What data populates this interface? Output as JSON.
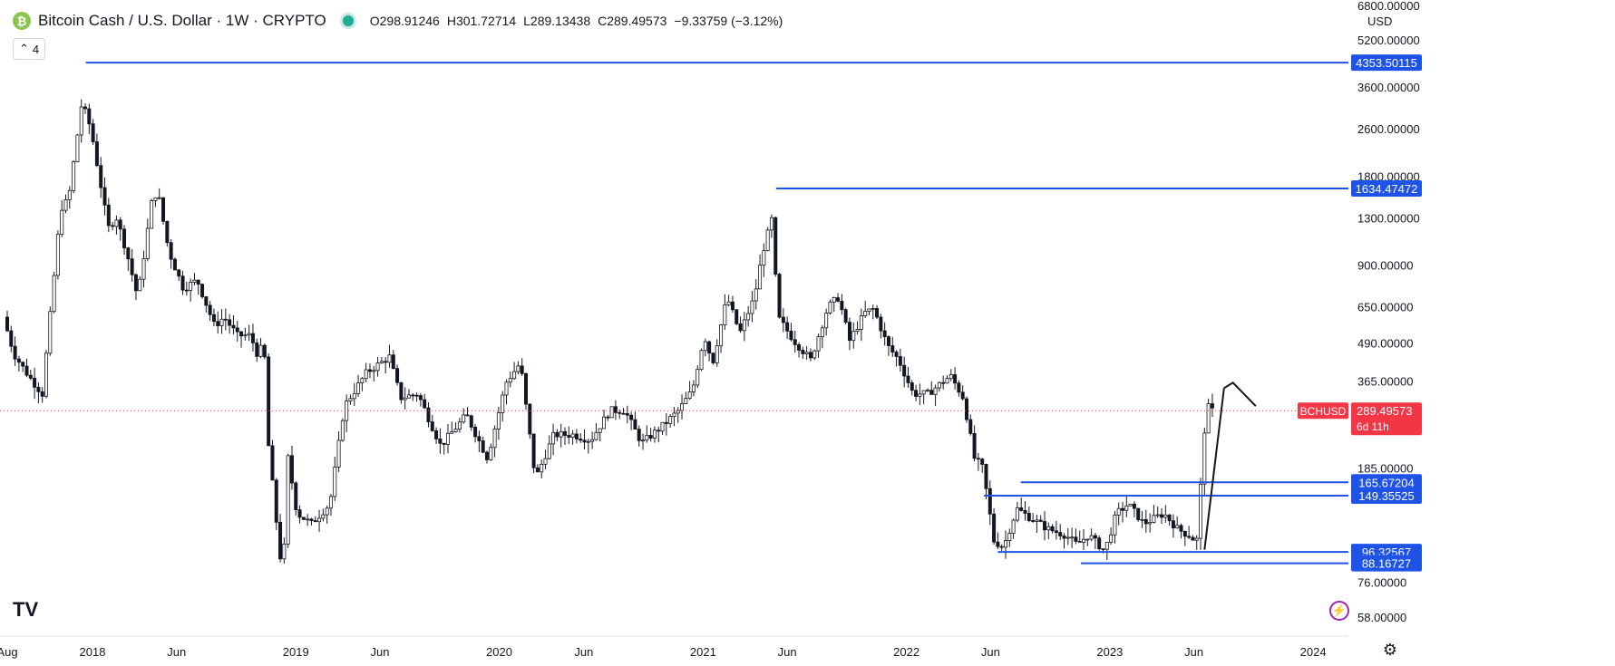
{
  "header": {
    "symbol_title": "Bitcoin Cash / U.S. Dollar · 1W · CRYPTO",
    "open_label": "O",
    "open": "298.91246",
    "high_label": "H",
    "high": "301.72714",
    "low_label": "L",
    "low": "289.13438",
    "close_label": "C",
    "close": "289.49573",
    "change": "−9.33759 (−3.12%)"
  },
  "indicator_count": "4",
  "currency": "USD",
  "logo_text": "TV",
  "colors": {
    "up": "#089981",
    "down": "#f23645",
    "candle": "#131722",
    "line": "#1e53e5",
    "price_tag": "#f23645",
    "axis_tag": "#1e53e5"
  },
  "chart_data": {
    "type": "candlestick",
    "y_scale": "log",
    "ylim": [
      50,
      6800
    ],
    "y_ticks": [
      58,
      76,
      96,
      185,
      365,
      490,
      650,
      900,
      1300,
      1800,
      2600,
      3600,
      5200,
      6800
    ],
    "y_tick_labels": [
      "58.00000",
      "76.00000",
      "96.00000",
      "185.00000",
      "365.00000",
      "490.00000",
      "650.00000",
      "900.00000",
      "1300.00000",
      "1800.00000",
      "2600.00000",
      "3600.00000",
      "5200.00000",
      "6800.00000"
    ],
    "x_range": [
      "2017-08-01",
      "2024-03-01"
    ],
    "x_ticks": [
      {
        "date": "2017-08-01",
        "label": "Aug"
      },
      {
        "date": "2018-01-01",
        "label": "2018"
      },
      {
        "date": "2018-06-01",
        "label": "Jun"
      },
      {
        "date": "2019-01-01",
        "label": "2019"
      },
      {
        "date": "2019-06-01",
        "label": "Jun"
      },
      {
        "date": "2020-01-01",
        "label": "2020"
      },
      {
        "date": "2020-06-01",
        "label": "Jun"
      },
      {
        "date": "2021-01-01",
        "label": "2021"
      },
      {
        "date": "2021-06-01",
        "label": "Jun"
      },
      {
        "date": "2022-01-01",
        "label": "2022"
      },
      {
        "date": "2022-06-01",
        "label": "Jun"
      },
      {
        "date": "2023-01-01",
        "label": "2023"
      },
      {
        "date": "2023-06-01",
        "label": "Jun"
      },
      {
        "date": "2024-01-01",
        "label": "2024"
      }
    ],
    "price_path": [
      [
        "2017-08-01",
        600
      ],
      [
        "2017-08-20",
        450
      ],
      [
        "2017-09-15",
        380
      ],
      [
        "2017-10-10",
        330
      ],
      [
        "2017-11-12",
        1400
      ],
      [
        "2017-11-26",
        1500
      ],
      [
        "2017-12-20",
        3200
      ],
      [
        "2018-01-05",
        2600
      ],
      [
        "2018-01-20",
        1800
      ],
      [
        "2018-02-05",
        1200
      ],
      [
        "2018-02-20",
        1300
      ],
      [
        "2018-03-10",
        1000
      ],
      [
        "2018-03-30",
        700
      ],
      [
        "2018-04-25",
        1500
      ],
      [
        "2018-05-05",
        1600
      ],
      [
        "2018-05-25",
        1000
      ],
      [
        "2018-06-20",
        750
      ],
      [
        "2018-07-15",
        800
      ],
      [
        "2018-08-15",
        560
      ],
      [
        "2018-09-01",
        600
      ],
      [
        "2018-09-25",
        520
      ],
      [
        "2018-10-20",
        520
      ],
      [
        "2018-10-28",
        450
      ],
      [
        "2018-11-12",
        480
      ],
      [
        "2018-11-20",
        220
      ],
      [
        "2018-12-10",
        95
      ],
      [
        "2018-12-16",
        82
      ],
      [
        "2018-12-25",
        200
      ],
      [
        "2019-01-10",
        130
      ],
      [
        "2019-02-05",
        120
      ],
      [
        "2019-03-10",
        140
      ],
      [
        "2019-04-05",
        300
      ],
      [
        "2019-05-15",
        390
      ],
      [
        "2019-06-25",
        440
      ],
      [
        "2019-07-15",
        320
      ],
      [
        "2019-08-15",
        330
      ],
      [
        "2019-09-25",
        220
      ],
      [
        "2019-11-10",
        280
      ],
      [
        "2019-12-18",
        200
      ],
      [
        "2020-01-20",
        360
      ],
      [
        "2020-02-15",
        420
      ],
      [
        "2020-03-13",
        170
      ],
      [
        "2020-04-15",
        240
      ],
      [
        "2020-05-20",
        240
      ],
      [
        "2020-06-20",
        230
      ],
      [
        "2020-07-25",
        290
      ],
      [
        "2020-08-20",
        290
      ],
      [
        "2020-09-20",
        225
      ],
      [
        "2020-10-25",
        255
      ],
      [
        "2020-11-25",
        290
      ],
      [
        "2020-12-20",
        340
      ],
      [
        "2021-01-10",
        520
      ],
      [
        "2021-01-25",
        420
      ],
      [
        "2021-02-20",
        700
      ],
      [
        "2021-03-15",
        530
      ],
      [
        "2021-04-10",
        700
      ],
      [
        "2021-04-25",
        1000
      ],
      [
        "2021-05-12",
        1300
      ],
      [
        "2021-05-22",
        600
      ],
      [
        "2021-06-20",
        500
      ],
      [
        "2021-07-20",
        430
      ],
      [
        "2021-08-20",
        650
      ],
      [
        "2021-09-08",
        700
      ],
      [
        "2021-09-28",
        500
      ],
      [
        "2021-10-25",
        620
      ],
      [
        "2021-11-10",
        640
      ],
      [
        "2021-12-05",
        480
      ],
      [
        "2021-12-25",
        430
      ],
      [
        "2022-01-20",
        330
      ],
      [
        "2022-02-15",
        330
      ],
      [
        "2022-03-28",
        380
      ],
      [
        "2022-04-20",
        320
      ],
      [
        "2022-05-10",
        200
      ],
      [
        "2022-05-25",
        185
      ],
      [
        "2022-06-14",
        105
      ],
      [
        "2022-07-01",
        100
      ],
      [
        "2022-07-25",
        135
      ],
      [
        "2022-08-20",
        125
      ],
      [
        "2022-09-20",
        115
      ],
      [
        "2022-10-20",
        110
      ],
      [
        "2022-11-10",
        102
      ],
      [
        "2022-12-01",
        110
      ],
      [
        "2022-12-30",
        97
      ],
      [
        "2023-01-20",
        130
      ],
      [
        "2023-02-10",
        140
      ],
      [
        "2023-03-10",
        120
      ],
      [
        "2023-04-15",
        130
      ],
      [
        "2023-05-10",
        115
      ],
      [
        "2023-06-05",
        108
      ],
      [
        "2023-06-12",
        100
      ],
      [
        "2023-06-19",
        150
      ],
      [
        "2023-06-26",
        240
      ],
      [
        "2023-07-02",
        300
      ],
      [
        "2023-07-09",
        289.5
      ]
    ],
    "horizontal_levels": [
      {
        "value": "4353.50115",
        "from": "2017-12-20"
      },
      {
        "value": "1634.47472",
        "from": "2021-05-12"
      },
      {
        "value": "165.67204",
        "from": "2022-07-25"
      },
      {
        "value": "149.35525",
        "from": "2022-05-20"
      },
      {
        "value": "96.32567",
        "from": "2022-06-14"
      },
      {
        "value": "88.16727",
        "from": "2022-11-10"
      }
    ],
    "current_price": {
      "symbol": "BCHUSD",
      "value": "289.49573",
      "countdown": "6d 11h"
    },
    "arrow": {
      "from": [
        "2023-06-20",
        98
      ],
      "to": [
        "2023-07-25",
        345
      ],
      "head_tip": [
        "2023-08-10",
        360
      ],
      "head_end": [
        "2023-09-20",
        300
      ]
    }
  }
}
